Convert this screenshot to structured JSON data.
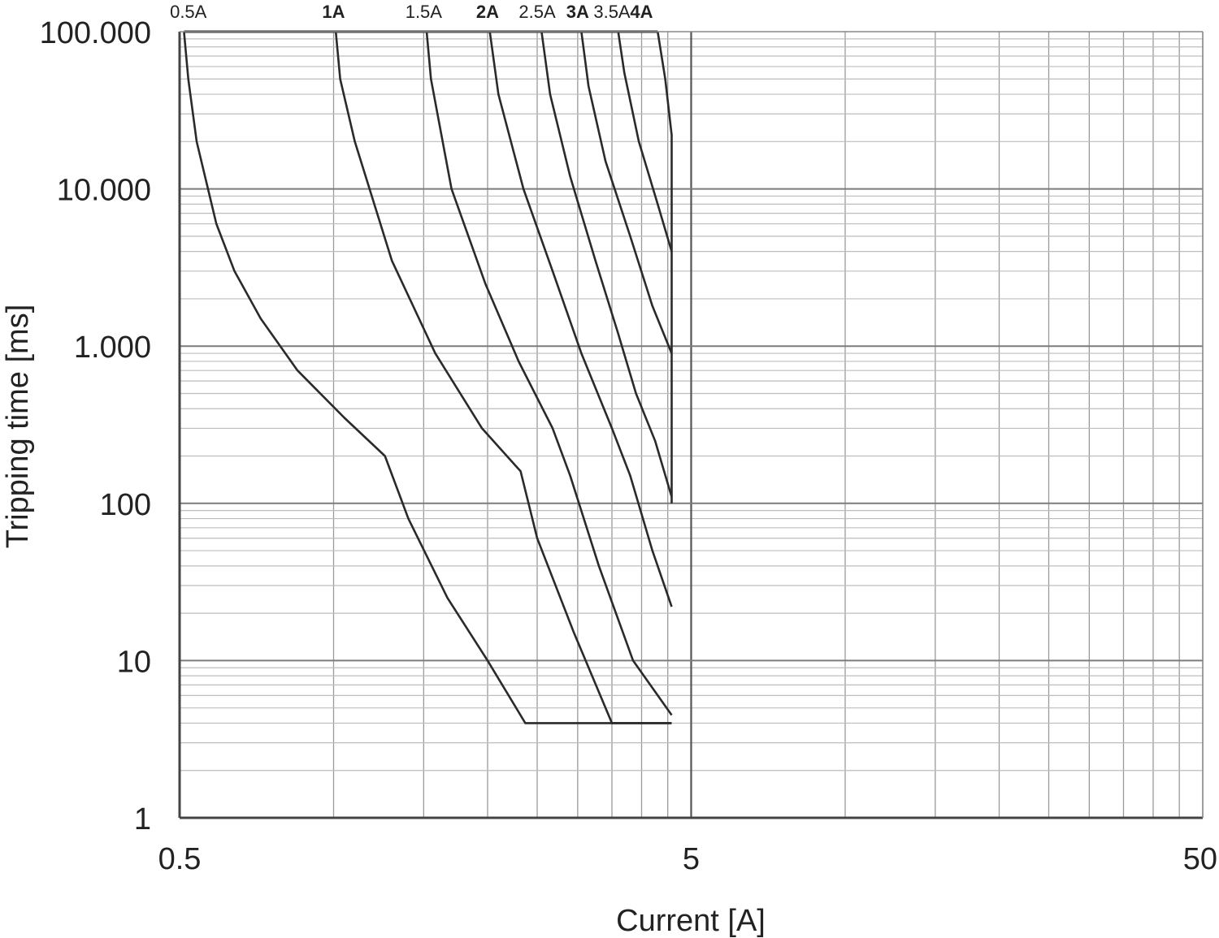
{
  "chart_data": {
    "type": "line",
    "title": "",
    "xlabel": "Current [A]",
    "ylabel": "Tripping time [ms]",
    "x_scale": "log",
    "y_scale": "log",
    "xlim": [
      0.5,
      50
    ],
    "ylim": [
      1,
      100000
    ],
    "grid": true,
    "legend": "none",
    "x_ticks": [
      {
        "value": 0.5,
        "label": "0.5"
      },
      {
        "value": 5,
        "label": "5"
      },
      {
        "value": 50,
        "label": "50"
      }
    ],
    "y_ticks": [
      {
        "value": 1,
        "label": "1"
      },
      {
        "value": 10,
        "label": "10"
      },
      {
        "value": 100,
        "label": "100"
      },
      {
        "value": 1000,
        "label": "1.000"
      },
      {
        "value": 10000,
        "label": "10.000"
      },
      {
        "value": 100000,
        "label": "100.000"
      }
    ],
    "curve_labels": [
      {
        "text": "0.5A",
        "x": 0.52,
        "bold": false
      },
      {
        "text": "1A",
        "x": 1.0,
        "bold": true
      },
      {
        "text": "1.5A",
        "x": 1.5,
        "bold": false
      },
      {
        "text": "2A",
        "x": 2.0,
        "bold": true
      },
      {
        "text": "2.5A",
        "x": 2.5,
        "bold": false
      },
      {
        "text": "3A",
        "x": 3.0,
        "bold": true
      },
      {
        "text": "3.5A",
        "x": 3.5,
        "bold": false
      },
      {
        "text": "4A",
        "x": 4.0,
        "bold": true
      }
    ],
    "series": [
      {
        "name": "0.5A",
        "points": [
          [
            0.51,
            100000
          ],
          [
            0.52,
            50000
          ],
          [
            0.54,
            20000
          ],
          [
            0.59,
            6000
          ],
          [
            0.64,
            3000
          ],
          [
            0.72,
            1500
          ],
          [
            0.85,
            700
          ],
          [
            1.05,
            350
          ],
          [
            1.26,
            200
          ],
          [
            1.4,
            80
          ],
          [
            1.67,
            25
          ],
          [
            2.0,
            10
          ],
          [
            2.37,
            4
          ],
          [
            4.58,
            4
          ]
        ]
      },
      {
        "name": "1A",
        "points": [
          [
            1.01,
            100000
          ],
          [
            1.03,
            50000
          ],
          [
            1.1,
            20000
          ],
          [
            1.3,
            3500
          ],
          [
            1.58,
            900
          ],
          [
            1.95,
            300
          ],
          [
            2.32,
            160
          ],
          [
            2.5,
            60
          ],
          [
            2.95,
            15
          ],
          [
            3.5,
            4
          ],
          [
            4.58,
            4
          ]
        ]
      },
      {
        "name": "1.5A",
        "points": [
          [
            1.52,
            100000
          ],
          [
            1.55,
            50000
          ],
          [
            1.7,
            10000
          ],
          [
            1.98,
            2500
          ],
          [
            2.3,
            800
          ],
          [
            2.68,
            300
          ],
          [
            2.9,
            150
          ],
          [
            3.3,
            40
          ],
          [
            3.85,
            10
          ],
          [
            4.58,
            4.5
          ]
        ]
      },
      {
        "name": "2A",
        "points": [
          [
            2.02,
            100000
          ],
          [
            2.1,
            40000
          ],
          [
            2.35,
            10000
          ],
          [
            2.68,
            3000
          ],
          [
            3.05,
            900
          ],
          [
            3.5,
            300
          ],
          [
            3.8,
            150
          ],
          [
            4.2,
            50
          ],
          [
            4.58,
            22
          ]
        ]
      },
      {
        "name": "2.5A",
        "points": [
          [
            2.55,
            100000
          ],
          [
            2.65,
            40000
          ],
          [
            2.9,
            12000
          ],
          [
            3.25,
            3500
          ],
          [
            3.6,
            1200
          ],
          [
            3.9,
            500
          ],
          [
            4.25,
            250
          ],
          [
            4.58,
            110
          ]
        ]
      },
      {
        "name": "3A",
        "points": [
          [
            3.05,
            100000
          ],
          [
            3.15,
            45000
          ],
          [
            3.4,
            15000
          ],
          [
            3.8,
            5000
          ],
          [
            4.2,
            1800
          ],
          [
            4.58,
            900
          ]
        ]
      },
      {
        "name": "3.5A",
        "points": [
          [
            3.6,
            100000
          ],
          [
            3.7,
            55000
          ],
          [
            3.95,
            20000
          ],
          [
            4.3,
            8000
          ],
          [
            4.58,
            4000
          ]
        ]
      },
      {
        "name": "4A",
        "points": [
          [
            4.3,
            100000
          ],
          [
            4.45,
            50000
          ],
          [
            4.58,
            22000
          ],
          [
            4.58,
            100
          ]
        ]
      }
    ]
  }
}
